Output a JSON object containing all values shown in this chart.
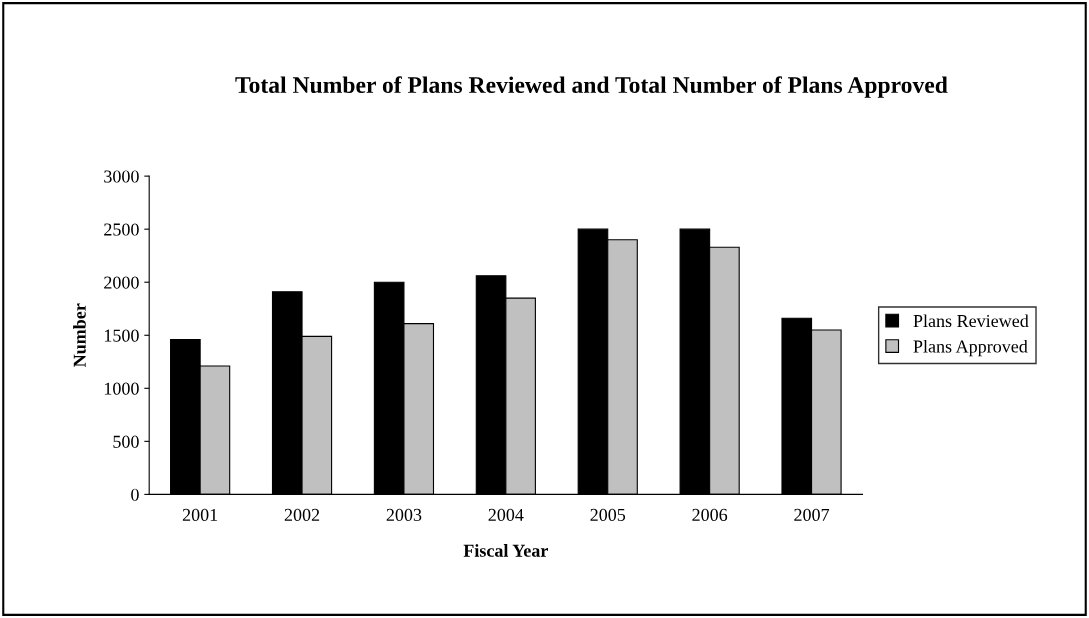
{
  "chart_data": {
    "type": "bar",
    "title": "Total Number of Plans Reviewed and Total Number of Plans Approved",
    "xlabel": "Fiscal Year",
    "ylabel": "Number",
    "categories": [
      "2001",
      "2002",
      "2003",
      "2004",
      "2005",
      "2006",
      "2007"
    ],
    "series": [
      {
        "name": "Plans Reviewed",
        "color": "#000000",
        "values": [
          1460,
          1910,
          2000,
          2060,
          2500,
          2500,
          1660
        ]
      },
      {
        "name": "Plans Approved",
        "color": "#c0c0c0",
        "values": [
          1210,
          1490,
          1610,
          1850,
          2400,
          2330,
          1550
        ]
      }
    ],
    "ylim": [
      0,
      3000
    ],
    "yticks": [
      0,
      500,
      1000,
      1500,
      2000,
      2500,
      3000
    ],
    "grid": false,
    "legend": "right"
  }
}
